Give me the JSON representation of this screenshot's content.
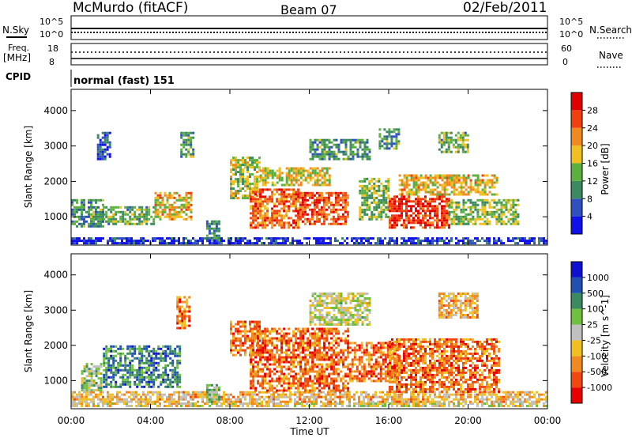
{
  "header": {
    "station": "McMurdo (fitACF)",
    "beam": "Beam 07",
    "date": "02/Feb/2011"
  },
  "strip_labels": {
    "nsky": "N.Sky",
    "nsearch": "N.Search",
    "freq_line1": "Freq.",
    "freq_line2": "[MHz]",
    "nave": "Nave",
    "cpid": "CPID",
    "cpid_value": "normal (fast) 151",
    "noise_top": "10^5",
    "noise_bottom": "10^0",
    "freq_top": "18",
    "freq_bottom": "8",
    "nave_top": "60",
    "nave_bottom": "0"
  },
  "colors": {
    "power": [
      "#1010e8",
      "#3050c0",
      "#3c8a60",
      "#5cb040",
      "#f0c020",
      "#f08a20",
      "#f04010",
      "#e00000"
    ],
    "velocity": [
      "#e80000",
      "#f04810",
      "#f08a20",
      "#f0c020",
      "#c0c0c0",
      "#70c040",
      "#3c8a60",
      "#2050b0",
      "#1010d0"
    ]
  },
  "chart_data": [
    {
      "type": "heatmap",
      "panel": "power",
      "ylabel": "Slant Range [km]",
      "xlabel": "",
      "yticks": [
        "1000",
        "2000",
        "3000",
        "4000"
      ],
      "ylim": [
        200,
        4600
      ],
      "xlim_hours": [
        0,
        24
      ],
      "colorbar": {
        "label": "Power [dB]",
        "ticks": [
          "4",
          "8",
          "12",
          "16",
          "20",
          "24",
          "28"
        ],
        "range": [
          0,
          30
        ]
      },
      "regions": [
        {
          "t0": 0.0,
          "t1": 24.0,
          "r0": 250,
          "r1": 420,
          "level": 0.12
        },
        {
          "t0": 0.0,
          "t1": 1.6,
          "r0": 700,
          "r1": 1500,
          "level": 0.35
        },
        {
          "t0": 1.3,
          "t1": 2.0,
          "r0": 2600,
          "r1": 3400,
          "level": 0.2
        },
        {
          "t0": 1.6,
          "t1": 4.2,
          "r0": 800,
          "r1": 1300,
          "level": 0.4
        },
        {
          "t0": 4.2,
          "t1": 6.0,
          "r0": 900,
          "r1": 1700,
          "level": 0.6
        },
        {
          "t0": 5.5,
          "t1": 6.2,
          "r0": 2700,
          "r1": 3400,
          "level": 0.35
        },
        {
          "t0": 6.8,
          "t1": 7.5,
          "r0": 300,
          "r1": 900,
          "level": 0.3
        },
        {
          "t0": 8.0,
          "t1": 9.5,
          "r0": 1500,
          "r1": 2700,
          "level": 0.5
        },
        {
          "t0": 9.0,
          "t1": 11.5,
          "r0": 700,
          "r1": 1800,
          "level": 0.75
        },
        {
          "t0": 9.5,
          "t1": 13.0,
          "r0": 1900,
          "r1": 2400,
          "level": 0.55
        },
        {
          "t0": 11.5,
          "t1": 14.0,
          "r0": 800,
          "r1": 1700,
          "level": 0.8
        },
        {
          "t0": 12.0,
          "t1": 15.0,
          "r0": 2600,
          "r1": 3200,
          "level": 0.35
        },
        {
          "t0": 14.5,
          "t1": 16.0,
          "r0": 900,
          "r1": 2100,
          "level": 0.45
        },
        {
          "t0": 15.5,
          "t1": 16.5,
          "r0": 2900,
          "r1": 3500,
          "level": 0.35
        },
        {
          "t0": 16.0,
          "t1": 19.0,
          "r0": 700,
          "r1": 1600,
          "level": 0.85
        },
        {
          "t0": 16.5,
          "t1": 21.5,
          "r0": 1600,
          "r1": 2200,
          "level": 0.6
        },
        {
          "t0": 18.5,
          "t1": 20.0,
          "r0": 2800,
          "r1": 3400,
          "level": 0.4
        },
        {
          "t0": 19.0,
          "t1": 22.5,
          "r0": 800,
          "r1": 1500,
          "level": 0.45
        }
      ]
    },
    {
      "type": "heatmap",
      "panel": "velocity",
      "ylabel": "Slant Range [km]",
      "xlabel": "Time UT",
      "yticks": [
        "1000",
        "2000",
        "3000",
        "4000"
      ],
      "ylim": [
        200,
        4600
      ],
      "xlim_hours": [
        0,
        24
      ],
      "xticks": [
        "00:00",
        "04:00",
        "08:00",
        "12:00",
        "16:00",
        "20:00",
        "00:00"
      ],
      "colorbar": {
        "label": "Velocity [m s^-1]",
        "ticks": [
          "1000",
          "500",
          "100",
          "25",
          "-25",
          "-100",
          "-500",
          "-1000"
        ],
        "range": [
          -1000,
          1000
        ]
      },
      "regions": [
        {
          "t0": 0.0,
          "t1": 24.0,
          "r0": 250,
          "r1": 380,
          "level": 0.45
        },
        {
          "t0": 0.0,
          "t1": 24.0,
          "r0": 380,
          "r1": 700,
          "level": 0.38
        },
        {
          "t0": 0.5,
          "t1": 1.5,
          "r0": 700,
          "r1": 1500,
          "level": 0.55
        },
        {
          "t0": 1.6,
          "t1": 5.5,
          "r0": 800,
          "r1": 2000,
          "level": 0.75
        },
        {
          "t0": 5.3,
          "t1": 6.0,
          "r0": 2500,
          "r1": 3400,
          "level": 0.25
        },
        {
          "t0": 6.8,
          "t1": 7.5,
          "r0": 400,
          "r1": 900,
          "level": 0.6
        },
        {
          "t0": 8.0,
          "t1": 9.5,
          "r0": 1700,
          "r1": 2700,
          "level": 0.25
        },
        {
          "t0": 9.0,
          "t1": 14.0,
          "r0": 700,
          "r1": 2500,
          "level": 0.22
        },
        {
          "t0": 12.0,
          "t1": 15.0,
          "r0": 2600,
          "r1": 3500,
          "level": 0.5
        },
        {
          "t0": 14.0,
          "t1": 16.5,
          "r0": 1000,
          "r1": 2100,
          "level": 0.22
        },
        {
          "t0": 16.0,
          "t1": 21.5,
          "r0": 700,
          "r1": 2200,
          "level": 0.22
        },
        {
          "t0": 18.5,
          "t1": 20.5,
          "r0": 2800,
          "r1": 3500,
          "level": 0.35
        }
      ]
    }
  ]
}
